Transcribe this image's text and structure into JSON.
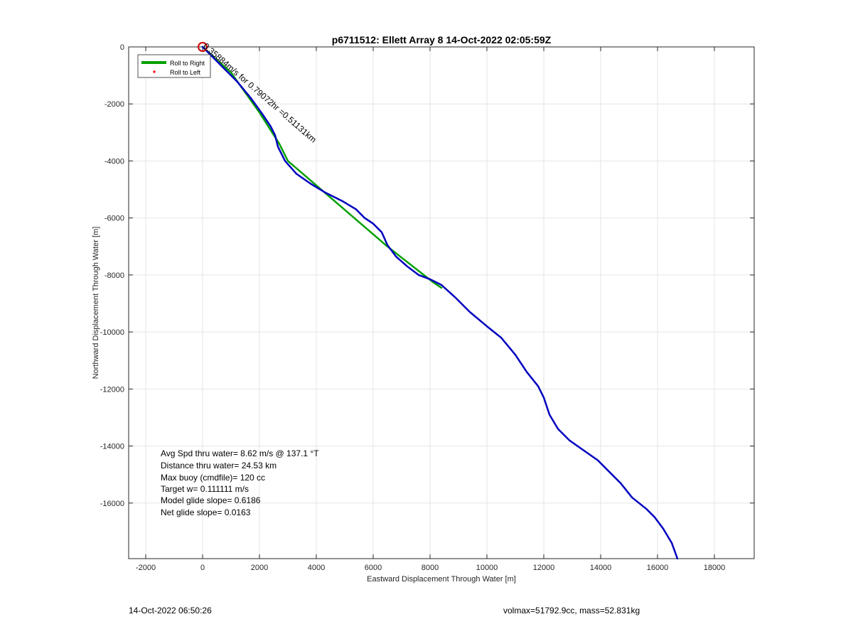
{
  "chart_data": {
    "type": "line",
    "title": "p6711512: Ellett Array 8 14-Oct-2022 02:05:59Z",
    "xlabel": "Eastward Displacement Through Water [m]",
    "ylabel": "Northward Displacement Through Water [m]",
    "xlim": [
      -2600,
      19400
    ],
    "ylim": [
      -17950,
      0
    ],
    "xticks": [
      -2000,
      0,
      2000,
      4000,
      6000,
      8000,
      10000,
      12000,
      14000,
      16000,
      18000
    ],
    "yticks": [
      0,
      -2000,
      -4000,
      -6000,
      -8000,
      -10000,
      -12000,
      -14000,
      -16000
    ],
    "grid": true,
    "legend": {
      "placement": "top-left",
      "entries": [
        {
          "label": "Roll to Right",
          "color": "#00a000",
          "style": "line"
        },
        {
          "label": "Roll to Left",
          "color": "#ff0000",
          "style": "dot"
        }
      ]
    },
    "series": [
      {
        "color": "#00a000",
        "x": [
          0,
          1000,
          2000,
          2700,
          3000,
          6500,
          8100,
          8400
        ],
        "y": [
          0,
          -900,
          -2300,
          -3400,
          -4000,
          -7000,
          -8250,
          -8450
        ]
      },
      {
        "color": "#0000c0",
        "x": [
          0,
          300,
          700,
          1200,
          1700,
          2100,
          2400,
          2550,
          2650,
          2900,
          3300,
          3800,
          4300,
          4900,
          5400,
          5700,
          6000,
          6300,
          6500,
          6800,
          7200,
          7600,
          8000,
          8400,
          8900,
          9400,
          10000,
          10500,
          11000,
          11400,
          11800,
          12000,
          12200,
          12500,
          12900,
          13400,
          13900,
          14300,
          14700,
          15100,
          15600,
          15900,
          16200,
          16500,
          16700
        ],
        "y": [
          0,
          -300,
          -700,
          -1200,
          -1800,
          -2350,
          -2800,
          -3100,
          -3500,
          -4000,
          -4450,
          -4800,
          -5100,
          -5400,
          -5700,
          -6000,
          -6200,
          -6500,
          -6950,
          -7350,
          -7700,
          -8000,
          -8150,
          -8350,
          -8800,
          -9300,
          -9800,
          -10200,
          -10800,
          -11400,
          -11900,
          -12300,
          -12900,
          -13400,
          -13800,
          -14150,
          -14500,
          -14900,
          -15300,
          -15800,
          -16200,
          -16500,
          -16900,
          -17400,
          -17950
        ]
      }
    ],
    "markers": [
      {
        "x": 0,
        "y": 0,
        "shape": "circle",
        "color": "#cc0000"
      }
    ],
    "annotations": [
      {
        "text": "0.35884m/s for 0.79072hr =0.51131km",
        "x": 0,
        "y": 0,
        "rotation_deg": 41
      }
    ],
    "stats": [
      "Avg Spd thru water=  8.62 m/s @ 137.1 °T",
      "Distance thru water= 24.53 km",
      "Max buoy (cmdfile)= 120 cc",
      "Target w= 0.111111 m/s",
      "Model glide slope= 0.6186",
      "Net glide slope= 0.0163"
    ]
  },
  "footer": {
    "left": "14-Oct-2022 06:50:26",
    "right": "volmax=51792.9cc, mass=52.831kg"
  }
}
